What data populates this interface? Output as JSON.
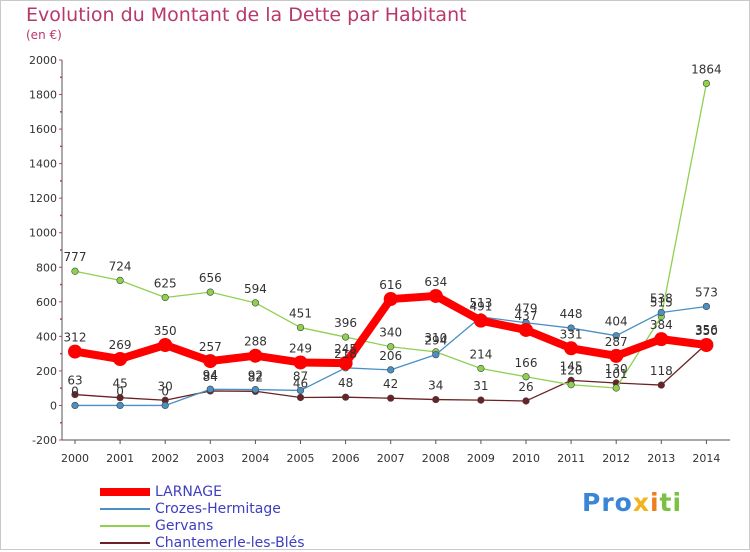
{
  "title": "Evolution du Montant de la Dette par Habitant",
  "subtitle": "(en €)",
  "brand": {
    "p1": "Pro",
    "p2": "x",
    "p3": "i",
    "p4": "ti"
  },
  "chart_data": {
    "type": "line",
    "x": [
      "2000",
      "2001",
      "2002",
      "2003",
      "2004",
      "2005",
      "2006",
      "2007",
      "2008",
      "2009",
      "2010",
      "2011",
      "2012",
      "2013",
      "2014"
    ],
    "ylim": [
      -200,
      2000
    ],
    "yticks": [
      "-200",
      "0",
      "200",
      "400",
      "600",
      "800",
      "1000",
      "1200",
      "1400",
      "1600",
      "1800",
      "2000"
    ],
    "grid": false,
    "legend_position": "bottom-left",
    "series": [
      {
        "name": "LARNAGE",
        "color": "#ff0000",
        "values": [
          312,
          269,
          350,
          257,
          288,
          249,
          245,
          616,
          634,
          491,
          437,
          331,
          287,
          384,
          350
        ]
      },
      {
        "name": "Crozes-Hermitage",
        "color": "#4a90c4",
        "values": [
          0,
          0,
          0,
          94,
          92,
          87,
          218,
          206,
          294,
          513,
          479,
          448,
          404,
          538,
          573
        ]
      },
      {
        "name": "Gervans",
        "color": "#8ed14f",
        "values": [
          777,
          724,
          625,
          656,
          594,
          451,
          396,
          340,
          310,
          214,
          166,
          120,
          101,
          515,
          1864
        ]
      },
      {
        "name": "Chantemerle-les-Blés",
        "color": "#6b2226",
        "values": [
          63,
          45,
          30,
          84,
          82,
          46,
          48,
          42,
          34,
          31,
          26,
          145,
          130,
          118,
          356
        ]
      }
    ]
  }
}
